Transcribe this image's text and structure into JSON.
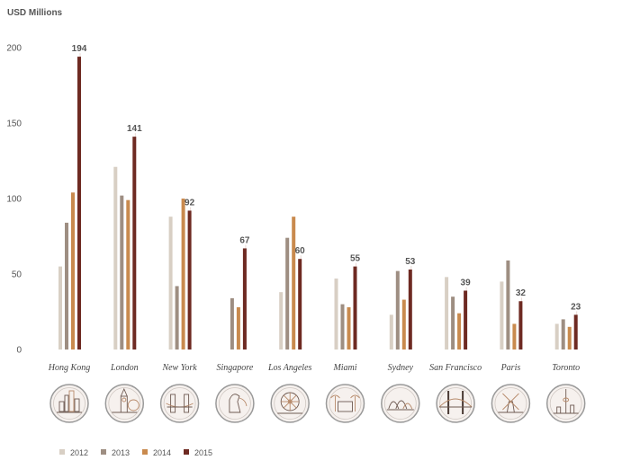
{
  "chart_data": {
    "type": "bar",
    "ylabel": "USD Millions",
    "ylim": [
      0,
      200
    ],
    "yticks": [
      0,
      50,
      100,
      150,
      200
    ],
    "categories": [
      "Hong Kong",
      "London",
      "New York",
      "Singapore",
      "Los Angeles",
      "Miami",
      "Sydney",
      "San Francisco",
      "Paris",
      "Toronto"
    ],
    "series": [
      {
        "name": "2012",
        "color": "#d8cfc4",
        "values": [
          55,
          121,
          88,
          0,
          38,
          47,
          23,
          48,
          45,
          17
        ]
      },
      {
        "name": "2013",
        "color": "#9e8e82",
        "values": [
          84,
          102,
          42,
          34,
          74,
          30,
          52,
          35,
          59,
          20
        ]
      },
      {
        "name": "2014",
        "color": "#c98a4e",
        "values": [
          104,
          99,
          100,
          28,
          88,
          28,
          33,
          24,
          17,
          15
        ]
      },
      {
        "name": "2015",
        "color": "#6e2a22",
        "values": [
          194,
          141,
          92,
          67,
          60,
          55,
          53,
          39,
          32,
          23
        ]
      }
    ],
    "data_labels": [
      "194",
      "141",
      "92",
      "67",
      "60",
      "55",
      "53",
      "39",
      "32",
      "23"
    ],
    "legend_position": "bottom-left",
    "grid": false
  },
  "icons": [
    "hong-kong-skyline-icon",
    "london-big-ben-icon",
    "new-york-bridge-icon",
    "singapore-merlion-icon",
    "los-angeles-ferris-wheel-icon",
    "miami-palm-building-icon",
    "sydney-opera-house-icon",
    "san-francisco-golden-gate-icon",
    "paris-eiffel-windmill-icon",
    "toronto-cn-tower-icon"
  ]
}
